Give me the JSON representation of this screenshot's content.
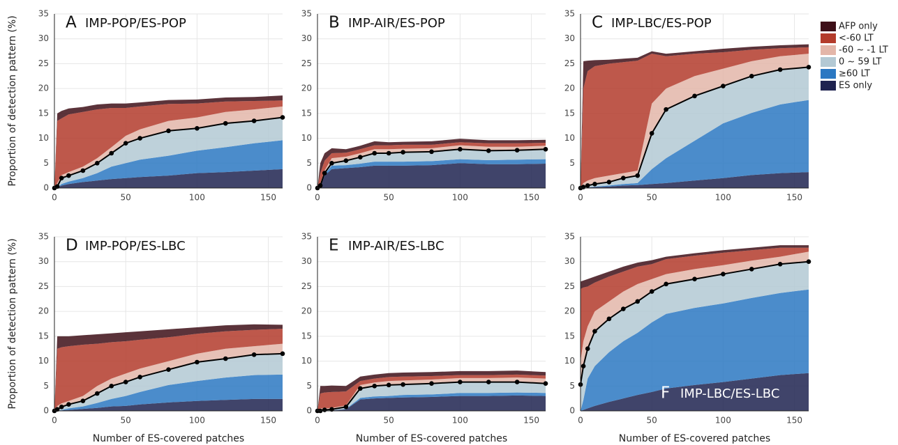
{
  "legend": {
    "position": "right",
    "entries": [
      {
        "name": "ES only",
        "color": "#1f2350"
      },
      {
        "name": "≥60 LT",
        "color": "#2b78c2"
      },
      {
        "name": "0 ~ 59 LT",
        "color": "#b3c9d4"
      },
      {
        "name": "-60 ~ -1 LT",
        "color": "#e3b6a9"
      },
      {
        "name": "<-60 LT",
        "color": "#b33b2b"
      },
      {
        "name": "AFP only",
        "color": "#3e0f18"
      }
    ]
  },
  "chart_data": [
    {
      "type": "area",
      "stacked": true,
      "panel": "A",
      "title": "IMP-POP/ES-POP",
      "label_corner": "top-left",
      "ylabel": "Proportion of detection pattern (%)",
      "x": [
        0,
        2,
        5,
        10,
        20,
        30,
        40,
        50,
        60,
        80,
        100,
        120,
        140,
        160
      ],
      "series": [
        {
          "values": [
            0,
            0.1,
            0.5,
            0.8,
            1.2,
            1.5,
            1.8,
            2,
            2.2,
            2.5,
            3,
            3.2,
            3.5,
            3.8
          ]
        },
        {
          "values": [
            0,
            0,
            0.3,
            0.5,
            0.8,
            1.5,
            2.5,
            3,
            3.5,
            4,
            4.5,
            5,
            5.5,
            5.8
          ]
        },
        {
          "values": [
            0,
            0.2,
            1.2,
            1.2,
            1.5,
            2,
            2.7,
            4,
            4.3,
            5,
            4.5,
            4.8,
            4.5,
            4.6
          ]
        },
        {
          "values": [
            0,
            0.7,
            0.6,
            0.7,
            0.8,
            1,
            1.2,
            1.5,
            1.8,
            2,
            2.2,
            2.3,
            2.3,
            2.2
          ]
        },
        {
          "values": [
            0,
            12.5,
            11.4,
            11.6,
            11,
            9.8,
            7.9,
            5.6,
            4.6,
            3.4,
            2.8,
            2.1,
            1.7,
            1.2
          ]
        },
        {
          "values": [
            0,
            1.5,
            1.5,
            1.2,
            1,
            1,
            0.9,
            0.9,
            0.8,
            0.8,
            0.8,
            0.8,
            0.8,
            1
          ]
        }
      ],
      "xlim": [
        0,
        160
      ],
      "xticks": [
        0,
        50,
        100,
        150
      ],
      "ylim": [
        0,
        35
      ],
      "yticks": [
        0,
        5,
        10,
        15,
        20,
        25,
        30,
        35
      ],
      "grid": true
    },
    {
      "type": "area",
      "stacked": true,
      "panel": "B",
      "title": "IMP-AIR/ES-POP",
      "label_corner": "top-left",
      "x": [
        0,
        2,
        5,
        10,
        20,
        30,
        40,
        50,
        60,
        80,
        100,
        120,
        140,
        160
      ],
      "series": [
        {
          "values": [
            0,
            0.3,
            2.5,
            3.8,
            4,
            4.2,
            4.5,
            4.5,
            4.5,
            4.6,
            5,
            4.8,
            4.8,
            4.9
          ]
        },
        {
          "values": [
            0,
            0,
            0.3,
            0.7,
            0.6,
            0.7,
            0.8,
            0.8,
            0.8,
            0.8,
            0.8,
            0.8,
            0.9,
            0.9
          ]
        },
        {
          "values": [
            0,
            0.2,
            0.2,
            0.5,
            0.9,
            1.3,
            1.7,
            1.7,
            1.9,
            1.9,
            2,
            1.9,
            1.9,
            2
          ]
        },
        {
          "values": [
            0,
            0.5,
            0.5,
            1,
            0.8,
            0.8,
            0.8,
            0.8,
            0.7,
            0.7,
            0.8,
            0.8,
            0.7,
            0.7
          ]
        },
        {
          "values": [
            0,
            2,
            2,
            1,
            0.8,
            0.8,
            0.8,
            0.8,
            0.8,
            0.7,
            0.6,
            0.7,
            0.7,
            0.6
          ]
        },
        {
          "values": [
            0,
            2,
            1.5,
            1,
            0.7,
            0.7,
            0.8,
            0.6,
            0.6,
            0.7,
            0.7,
            0.6,
            0.6,
            0.6
          ]
        }
      ],
      "xlim": [
        0,
        160
      ],
      "xticks": [
        0,
        50,
        100,
        150
      ],
      "ylim": [
        0,
        35
      ],
      "yticks": [
        0,
        5,
        10,
        15,
        20,
        25,
        30,
        35
      ],
      "grid": true
    },
    {
      "type": "area",
      "stacked": true,
      "panel": "C",
      "title": "IMP-LBC/ES-POP",
      "label_corner": "top-left",
      "x": [
        0,
        2,
        5,
        10,
        20,
        30,
        40,
        50,
        60,
        80,
        100,
        120,
        140,
        160
      ],
      "series": [
        {
          "values": [
            0,
            0,
            0.1,
            0.2,
            0.3,
            0.5,
            0.6,
            0.8,
            1,
            1.5,
            2,
            2.6,
            3,
            3.2
          ]
        },
        {
          "values": [
            0,
            0,
            0,
            0.1,
            0.2,
            0.3,
            0.4,
            3,
            5,
            8,
            11,
            12.5,
            13.8,
            14.5
          ]
        },
        {
          "values": [
            0,
            0.2,
            0.4,
            0.5,
            0.7,
            1.2,
            1.5,
            7.2,
            9.8,
            9,
            7.5,
            7.4,
            7,
            6.6
          ]
        },
        {
          "values": [
            0,
            0.8,
            1,
            1.2,
            1.3,
            1,
            1,
            6,
            4.2,
            4,
            3.5,
            3,
            2.7,
            2.7
          ]
        },
        {
          "values": [
            0,
            19,
            22,
            22.5,
            22.5,
            22.3,
            22.1,
            10,
            6.5,
            4.5,
            3.3,
            2.3,
            1.6,
            1.3
          ]
        },
        {
          "values": [
            0,
            5.5,
            2.1,
            1.2,
            0.8,
            0.7,
            0.6,
            0.5,
            0.5,
            0.5,
            0.7,
            0.6,
            0.6,
            0.6
          ]
        }
      ],
      "xlim": [
        0,
        160
      ],
      "xticks": [
        0,
        50,
        100,
        150
      ],
      "ylim": [
        0,
        35
      ],
      "yticks": [
        0,
        5,
        10,
        15,
        20,
        25,
        30,
        35
      ],
      "grid": true
    },
    {
      "type": "area",
      "stacked": true,
      "panel": "D",
      "title": "IMP-POP/ES-LBC",
      "label_corner": "top-left",
      "ylabel": "Proportion of detection pattern (%)",
      "xlabel": "Number of ES-covered patches",
      "x": [
        0,
        2,
        5,
        10,
        20,
        30,
        40,
        50,
        60,
        80,
        100,
        120,
        140,
        160
      ],
      "series": [
        {
          "values": [
            0,
            0,
            0.1,
            0.2,
            0.4,
            0.6,
            0.9,
            1,
            1.3,
            1.7,
            2,
            2.2,
            2.4,
            2.4
          ]
        },
        {
          "values": [
            0,
            0,
            0.1,
            0.3,
            0.5,
            1,
            1.5,
            2,
            2.5,
            3.5,
            4,
            4.5,
            4.8,
            4.9
          ]
        },
        {
          "values": [
            0,
            0.3,
            0.6,
            0.8,
            1.1,
            1.9,
            2.6,
            2.8,
            3,
            3.1,
            3.8,
            3.8,
            4.1,
            4.2
          ]
        },
        {
          "values": [
            0,
            0.7,
            0.7,
            0.7,
            1,
            1.5,
            1.5,
            1.7,
            1.7,
            1.7,
            1.7,
            2,
            1.7,
            2
          ]
        },
        {
          "values": [
            0,
            11.5,
            11.3,
            11,
            10.3,
            8.5,
            7.3,
            6.5,
            5.8,
            4.8,
            4,
            3.5,
            3.3,
            3
          ]
        },
        {
          "values": [
            0,
            2.5,
            2.2,
            2,
            1.9,
            1.9,
            1.8,
            1.8,
            1.7,
            1.6,
            1.3,
            1.2,
            1.1,
            0.8
          ]
        }
      ],
      "xlim": [
        0,
        160
      ],
      "xticks": [
        0,
        50,
        100,
        150
      ],
      "ylim": [
        0,
        35
      ],
      "yticks": [
        0,
        5,
        10,
        15,
        20,
        25,
        30,
        35
      ],
      "grid": true
    },
    {
      "type": "area",
      "stacked": true,
      "panel": "E",
      "title": "IMP-AIR/ES-LBC",
      "label_corner": "top-left",
      "xlabel": "Number of ES-covered patches",
      "x": [
        0,
        2,
        5,
        10,
        20,
        30,
        40,
        50,
        60,
        80,
        100,
        120,
        140,
        160
      ],
      "series": [
        {
          "values": [
            0,
            0,
            0,
            0.1,
            0.3,
            2.3,
            2.5,
            2.6,
            2.7,
            2.8,
            3,
            3,
            3.1,
            3
          ]
        },
        {
          "values": [
            0,
            0,
            0,
            0,
            0.1,
            0.3,
            0.4,
            0.4,
            0.5,
            0.5,
            0.6,
            0.6,
            0.6,
            0.6
          ]
        },
        {
          "values": [
            0,
            0,
            0.2,
            0.2,
            0.4,
            1.9,
            2.1,
            2.2,
            2.1,
            2.2,
            2.2,
            2.2,
            2.1,
            1.9
          ]
        },
        {
          "values": [
            0,
            0.5,
            0.3,
            0.3,
            0.3,
            0.7,
            0.7,
            0.8,
            0.8,
            0.8,
            0.8,
            0.8,
            0.9,
            1
          ]
        },
        {
          "values": [
            0,
            3,
            3.2,
            3.2,
            2.8,
            0.8,
            0.8,
            0.8,
            0.8,
            0.7,
            0.6,
            0.6,
            0.6,
            0.6
          ]
        },
        {
          "values": [
            0,
            1.5,
            1.3,
            1.3,
            1.1,
            0.9,
            0.8,
            0.8,
            0.8,
            0.8,
            0.8,
            0.8,
            0.8,
            0.7
          ]
        }
      ],
      "xlim": [
        0,
        160
      ],
      "xticks": [
        0,
        50,
        100,
        150
      ],
      "ylim": [
        0,
        35
      ],
      "yticks": [
        0,
        5,
        10,
        15,
        20,
        25,
        30,
        35
      ],
      "grid": true
    },
    {
      "type": "area",
      "stacked": true,
      "panel": "F",
      "title": "IMP-LBC/ES-LBC",
      "label_corner": "bottom-right",
      "xlabel": "Number of ES-covered patches",
      "x": [
        0,
        2,
        5,
        10,
        20,
        30,
        40,
        50,
        60,
        80,
        100,
        120,
        140,
        160
      ],
      "series": [
        {
          "values": [
            0,
            0.2,
            0.5,
            1,
            1.8,
            2.5,
            3.2,
            3.8,
            4.5,
            5.2,
            5.8,
            6.5,
            7.2,
            7.6
          ]
        },
        {
          "values": [
            0,
            2,
            6,
            8,
            10,
            11.5,
            12.5,
            14,
            15,
            15.5,
            15.8,
            16.2,
            16.5,
            16.8
          ]
        },
        {
          "values": [
            5.3,
            6.8,
            6,
            7,
            6.7,
            6.5,
            6.3,
            6.2,
            6,
            5.8,
            5.9,
            5.8,
            5.8,
            5.6
          ]
        },
        {
          "values": [
            4.7,
            5,
            4.5,
            4,
            3.5,
            3.5,
            3.5,
            2.5,
            2,
            2,
            1.8,
            1.7,
            1.5,
            2
          ]
        },
        {
          "values": [
            14.5,
            10.8,
            8,
            5.8,
            5,
            4,
            3.5,
            3,
            3,
            2.7,
            2.5,
            2.1,
            1.8,
            0.8
          ]
        },
        {
          "values": [
            1.5,
            1.4,
            1.5,
            1.2,
            1,
            1,
            0.8,
            0.8,
            0.5,
            0.5,
            0.5,
            0.5,
            0.5,
            0.5
          ]
        }
      ],
      "xlim": [
        0,
        160
      ],
      "xticks": [
        0,
        50,
        100,
        150
      ],
      "ylim": [
        0,
        35
      ],
      "yticks": [
        0,
        5,
        10,
        15,
        20,
        25,
        30,
        35
      ],
      "grid": true
    }
  ]
}
